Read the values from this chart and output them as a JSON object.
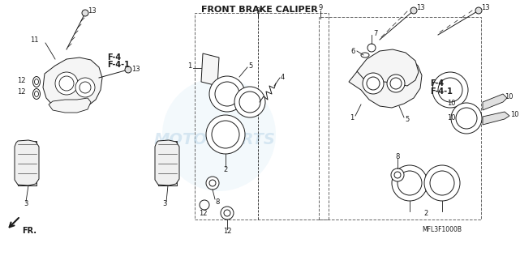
{
  "title": "FRONT BRAKE CALIPER",
  "title_fontsize": 9,
  "bg_color": "#ffffff",
  "line_color": "#1a1a1a",
  "text_color": "#1a1a1a",
  "watermark_color": "#c8dff0",
  "ref_code": "MFL3F1000B",
  "fr_label": "FR.",
  "fig_width": 6.41,
  "fig_height": 3.21,
  "dpi": 100
}
